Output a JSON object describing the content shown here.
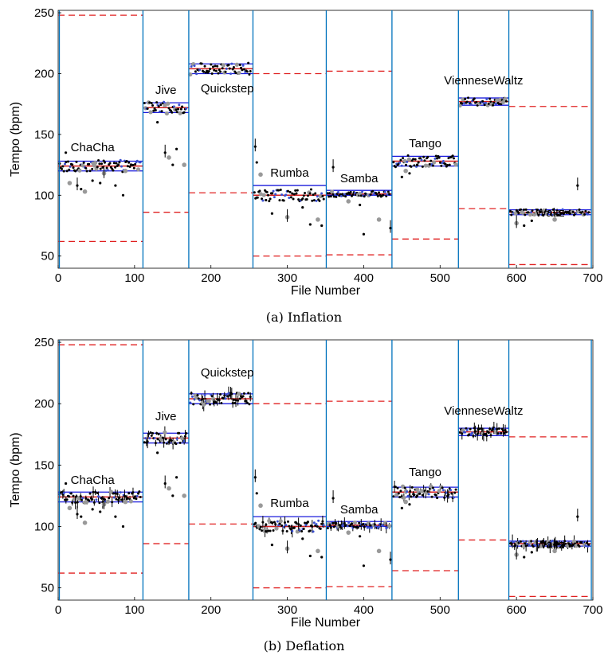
{
  "chart_data": [
    {
      "type": "scatter",
      "caption": "(a) Inflation",
      "xlabel": "File Number",
      "ylabel": "Tempo (bpm)",
      "xlim": [
        0,
        700
      ],
      "ylim": [
        40,
        252
      ],
      "xticks": [
        0,
        100,
        200,
        300,
        400,
        500,
        600,
        700
      ],
      "yticks": [
        50,
        100,
        150,
        200,
        250
      ],
      "grid": false,
      "segments": [
        {
          "name": "ChaCha",
          "x_start": 0,
          "x_end": 111,
          "band": [
            120,
            128
          ],
          "mean": 124,
          "red_dashed": [
            248,
            62
          ]
        },
        {
          "name": "Jive",
          "x_start": 111,
          "x_end": 171,
          "band": [
            168,
            176
          ],
          "mean": 172,
          "red_dashed": [
            86
          ]
        },
        {
          "name": "Quickstep",
          "x_start": 171,
          "x_end": 255,
          "band": [
            200,
            208
          ],
          "mean": 204,
          "red_dashed": [
            102
          ]
        },
        {
          "name": "Rumba",
          "x_start": 255,
          "x_end": 351,
          "band": [
            100,
            108
          ],
          "mean": 100,
          "red_dashed": [
            200,
            50
          ]
        },
        {
          "name": "Samba",
          "x_start": 351,
          "x_end": 437,
          "band": [
            100,
            104
          ],
          "mean": 101,
          "red_dashed": [
            202,
            51
          ]
        },
        {
          "name": "Tango",
          "x_start": 437,
          "x_end": 524,
          "band": [
            124,
            132
          ],
          "mean": 128,
          "red_dashed": [
            64
          ]
        },
        {
          "name": "VienneseWaltz",
          "x_start": 524,
          "x_end": 590,
          "band": [
            174,
            180
          ],
          "mean": 177,
          "red_dashed": [
            89
          ]
        },
        {
          "name": "Waltz",
          "x_start": 590,
          "x_end": 698,
          "band": [
            84,
            88
          ],
          "mean": 86,
          "red_dashed": [
            173,
            43
          ]
        }
      ],
      "outlier_points": [
        [
          10,
          135
        ],
        [
          15,
          110
        ],
        [
          25,
          108
        ],
        [
          30,
          105
        ],
        [
          35,
          103
        ],
        [
          45,
          112
        ],
        [
          55,
          110
        ],
        [
          60,
          118
        ],
        [
          75,
          108
        ],
        [
          85,
          100
        ],
        [
          88,
          120
        ],
        [
          130,
          160
        ],
        [
          140,
          135
        ],
        [
          145,
          131
        ],
        [
          150,
          125
        ],
        [
          155,
          138
        ],
        [
          165,
          125
        ],
        [
          258,
          140
        ],
        [
          260,
          127
        ],
        [
          265,
          117
        ],
        [
          272,
          96
        ],
        [
          280,
          85
        ],
        [
          300,
          82
        ],
        [
          320,
          90
        ],
        [
          330,
          76
        ],
        [
          340,
          80
        ],
        [
          345,
          75
        ],
        [
          360,
          123
        ],
        [
          380,
          95
        ],
        [
          395,
          92
        ],
        [
          400,
          68
        ],
        [
          420,
          80
        ],
        [
          435,
          73
        ],
        [
          450,
          115
        ],
        [
          455,
          120
        ],
        [
          460,
          118
        ],
        [
          470,
          125
        ],
        [
          600,
          77
        ],
        [
          610,
          75
        ],
        [
          620,
          79
        ],
        [
          650,
          80
        ],
        [
          670,
          85
        ],
        [
          680,
          108
        ]
      ]
    },
    {
      "type": "scatter",
      "caption": "(b) Deflation",
      "xlabel": "File Number",
      "ylabel": "Tempo (bpm)",
      "xlim": [
        0,
        700
      ],
      "ylim": [
        40,
        252
      ],
      "xticks": [
        0,
        100,
        200,
        300,
        400,
        500,
        600,
        700
      ],
      "yticks": [
        50,
        100,
        150,
        200,
        250
      ],
      "grid": false,
      "segments": [
        {
          "name": "ChaCha",
          "x_start": 0,
          "x_end": 111,
          "band": [
            120,
            128
          ],
          "mean": 124,
          "red_dashed": [
            248,
            62
          ]
        },
        {
          "name": "Jive",
          "x_start": 111,
          "x_end": 171,
          "band": [
            168,
            176
          ],
          "mean": 172,
          "red_dashed": [
            86
          ]
        },
        {
          "name": "Quickstep",
          "x_start": 171,
          "x_end": 255,
          "band": [
            200,
            208
          ],
          "mean": 204,
          "red_dashed": [
            102
          ]
        },
        {
          "name": "Rumba",
          "x_start": 255,
          "x_end": 351,
          "band": [
            100,
            108
          ],
          "mean": 100,
          "red_dashed": [
            200,
            50
          ]
        },
        {
          "name": "Samba",
          "x_start": 351,
          "x_end": 437,
          "band": [
            100,
            104
          ],
          "mean": 101,
          "red_dashed": [
            202,
            51
          ]
        },
        {
          "name": "Tango",
          "x_start": 437,
          "x_end": 524,
          "band": [
            124,
            132
          ],
          "mean": 128,
          "red_dashed": [
            64
          ]
        },
        {
          "name": "VienneseWaltz",
          "x_start": 524,
          "x_end": 590,
          "band": [
            174,
            180
          ],
          "mean": 177,
          "red_dashed": [
            89
          ]
        },
        {
          "name": "Waltz",
          "x_start": 590,
          "x_end": 698,
          "band": [
            84,
            88
          ],
          "mean": 86,
          "red_dashed": [
            173,
            43
          ]
        }
      ],
      "outlier_points": [
        [
          10,
          135
        ],
        [
          15,
          115
        ],
        [
          25,
          110
        ],
        [
          30,
          108
        ],
        [
          35,
          103
        ],
        [
          45,
          114
        ],
        [
          55,
          112
        ],
        [
          60,
          118
        ],
        [
          75,
          108
        ],
        [
          85,
          100
        ],
        [
          88,
          120
        ],
        [
          130,
          160
        ],
        [
          140,
          135
        ],
        [
          145,
          131
        ],
        [
          150,
          125
        ],
        [
          155,
          140
        ],
        [
          165,
          125
        ],
        [
          258,
          140
        ],
        [
          260,
          127
        ],
        [
          265,
          117
        ],
        [
          272,
          96
        ],
        [
          280,
          85
        ],
        [
          300,
          82
        ],
        [
          320,
          90
        ],
        [
          330,
          76
        ],
        [
          340,
          80
        ],
        [
          345,
          75
        ],
        [
          360,
          123
        ],
        [
          380,
          95
        ],
        [
          395,
          92
        ],
        [
          400,
          68
        ],
        [
          420,
          80
        ],
        [
          435,
          73
        ],
        [
          450,
          115
        ],
        [
          455,
          120
        ],
        [
          460,
          118
        ],
        [
          470,
          125
        ],
        [
          600,
          77
        ],
        [
          610,
          75
        ],
        [
          620,
          79
        ],
        [
          650,
          80
        ],
        [
          670,
          85
        ],
        [
          680,
          108
        ]
      ]
    }
  ],
  "colors": {
    "segment_divider": "#0072bd",
    "band_line": "#1a1adb",
    "mean_line": "#d62020",
    "red_dashed": "#e02020",
    "points": "#000000",
    "outliers_gray": "#999999"
  }
}
